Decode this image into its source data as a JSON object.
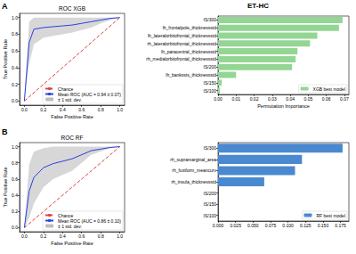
{
  "title": "ET-HC",
  "panel_labels": [
    "A",
    "B"
  ],
  "chart_data": [
    {
      "type": "line",
      "title": "ROC XGB",
      "x_label": "False Positive Rate",
      "y_label": "True Positive Rate",
      "xlim": [
        -0.05,
        1.05
      ],
      "ylim": [
        -0.05,
        1.05
      ],
      "xticks": [
        {
          "value": 0,
          "label": "0.0"
        },
        {
          "value": 0.2,
          "label": "0.2"
        },
        {
          "value": 0.4,
          "label": "0.4"
        },
        {
          "value": 0.6,
          "label": "0.6"
        },
        {
          "value": 0.8,
          "label": "0.8"
        },
        {
          "value": 1,
          "label": "1.0"
        }
      ],
      "yticks": [
        {
          "value": 0,
          "label": "0.0"
        },
        {
          "value": 0.2,
          "label": "0.2"
        },
        {
          "value": 0.4,
          "label": "0.4"
        },
        {
          "value": 0.6,
          "label": "0.6"
        },
        {
          "value": 0.8,
          "label": "0.8"
        },
        {
          "value": 1,
          "label": "1.0"
        }
      ],
      "legend": "lower right",
      "grid": false,
      "series": [
        {
          "name": "Chance",
          "color": "#e04040",
          "line_style": "dashed",
          "x": [
            0,
            1
          ],
          "values": [
            0,
            1
          ]
        },
        {
          "name": "Mean ROC (AUC = 0.94 ± 0.07)",
          "color": "#2b3fe0",
          "line_style": "solid",
          "x": [
            0,
            0.05,
            0.1,
            0.2,
            0.3,
            0.4,
            0.5,
            0.6,
            0.7,
            0.8,
            0.9,
            1.0
          ],
          "values": [
            0,
            0.7,
            0.86,
            0.88,
            0.89,
            0.9,
            0.91,
            0.93,
            0.95,
            0.97,
            0.99,
            1.0
          ]
        },
        {
          "name": "± 1 std. dev.",
          "type": "band",
          "color": "#bdbdbd",
          "x": [
            0,
            0.05,
            0.1,
            0.2,
            0.3,
            0.4,
            0.5,
            0.6,
            0.7,
            0.8,
            0.9,
            1.0
          ],
          "lower": [
            0,
            0.45,
            0.68,
            0.76,
            0.78,
            0.8,
            0.82,
            0.85,
            0.88,
            0.93,
            0.97,
            1.0
          ],
          "upper": [
            0,
            0.95,
            1.0,
            1.0,
            1.0,
            1.0,
            1.0,
            1.0,
            1.0,
            1.0,
            1.0,
            1.0
          ]
        }
      ]
    },
    {
      "type": "bar",
      "orientation": "horizontal",
      "x_label": "Permutation Importance",
      "categories": [
        "IS/300",
        "lh_frontalpole_thicknessstd",
        "lh_lateralorbitofrontal_thicknessstd",
        "rh_lateralorbitofrontal_thicknessstd",
        "lh_paracentral_thicknessstd",
        "rh_medialorbitofrontal_thicknessstd",
        "IS/200",
        "lh_bankssts_thicknessstd",
        "IS/150",
        "IS/100"
      ],
      "xlim": [
        0,
        0.0725
      ],
      "xticks": [
        {
          "value": 0,
          "label": "0.00"
        },
        {
          "value": 0.01,
          "label": "0.01"
        },
        {
          "value": 0.02,
          "label": "0.02"
        },
        {
          "value": 0.03,
          "label": "0.03"
        },
        {
          "value": 0.04,
          "label": "0.04"
        },
        {
          "value": 0.05,
          "label": "0.05"
        },
        {
          "value": 0.06,
          "label": "0.06"
        },
        {
          "value": 0.07,
          "label": "0.07"
        }
      ],
      "legend": "lower right",
      "grid": false,
      "series": [
        {
          "name": "XGB best model",
          "color": "#93d693",
          "values": [
            0.069,
            0.067,
            0.055,
            0.051,
            0.044,
            0.043,
            0.041,
            0.01,
            0.002,
            0.001
          ]
        }
      ]
    },
    {
      "type": "line",
      "title": "ROC RF",
      "x_label": "False Positive Rate",
      "y_label": "True Positive Rate",
      "xlim": [
        -0.05,
        1.05
      ],
      "ylim": [
        -0.05,
        1.05
      ],
      "xticks": [
        {
          "value": 0,
          "label": "0.0"
        },
        {
          "value": 0.2,
          "label": "0.2"
        },
        {
          "value": 0.4,
          "label": "0.4"
        },
        {
          "value": 0.6,
          "label": "0.6"
        },
        {
          "value": 0.8,
          "label": "0.8"
        },
        {
          "value": 1,
          "label": "1.0"
        }
      ],
      "yticks": [
        {
          "value": 0,
          "label": "0.0"
        },
        {
          "value": 0.2,
          "label": "0.2"
        },
        {
          "value": 0.4,
          "label": "0.4"
        },
        {
          "value": 0.6,
          "label": "0.6"
        },
        {
          "value": 0.8,
          "label": "0.8"
        },
        {
          "value": 1,
          "label": "1.0"
        }
      ],
      "legend": "lower right",
      "grid": false,
      "series": [
        {
          "name": "Chance",
          "color": "#e04040",
          "line_style": "dashed",
          "x": [
            0,
            1
          ],
          "values": [
            0,
            1
          ]
        },
        {
          "name": "Mean ROC (AUC = 0.86 ± 0.10)",
          "color": "#2b3fe0",
          "line_style": "solid",
          "x": [
            0,
            0.05,
            0.1,
            0.2,
            0.3,
            0.4,
            0.5,
            0.6,
            0.7,
            0.8,
            0.9,
            1.0
          ],
          "values": [
            0,
            0.45,
            0.62,
            0.74,
            0.79,
            0.82,
            0.85,
            0.9,
            0.95,
            0.97,
            0.99,
            1.0
          ]
        },
        {
          "name": "± 1 std. dev.",
          "type": "band",
          "color": "#bdbdbd",
          "x": [
            0,
            0.05,
            0.1,
            0.2,
            0.3,
            0.4,
            0.5,
            0.6,
            0.7,
            0.8,
            0.9,
            1.0
          ],
          "lower": [
            0,
            0.12,
            0.3,
            0.5,
            0.6,
            0.65,
            0.7,
            0.8,
            0.9,
            0.94,
            0.98,
            1.0
          ],
          "upper": [
            0,
            0.78,
            0.94,
            0.98,
            1.0,
            1.0,
            1.0,
            1.0,
            1.0,
            1.0,
            1.0,
            1.0
          ]
        }
      ]
    },
    {
      "type": "bar",
      "orientation": "horizontal",
      "categories": [
        "IS/300",
        "rh_supramarginal_area",
        "rh_fusiform_meancurv",
        "rh_insula_thicknessstd",
        "IS/200",
        "IS/150",
        "IS/100"
      ],
      "xlim": [
        0,
        0.187
      ],
      "xticks": [
        {
          "value": 0,
          "label": "0.000"
        },
        {
          "value": 0.025,
          "label": "0.025"
        },
        {
          "value": 0.05,
          "label": "0.050"
        },
        {
          "value": 0.075,
          "label": "0.075"
        },
        {
          "value": 0.1,
          "label": "0.100"
        },
        {
          "value": 0.125,
          "label": "0.125"
        },
        {
          "value": 0.15,
          "label": "0.150"
        },
        {
          "value": 0.175,
          "label": "0.175"
        }
      ],
      "legend": "lower right",
      "grid": false,
      "series": [
        {
          "name": "RF best model",
          "color": "#4a89cf",
          "values": [
            0.178,
            0.12,
            0.11,
            0.066,
            0,
            0,
            0
          ]
        }
      ]
    }
  ]
}
